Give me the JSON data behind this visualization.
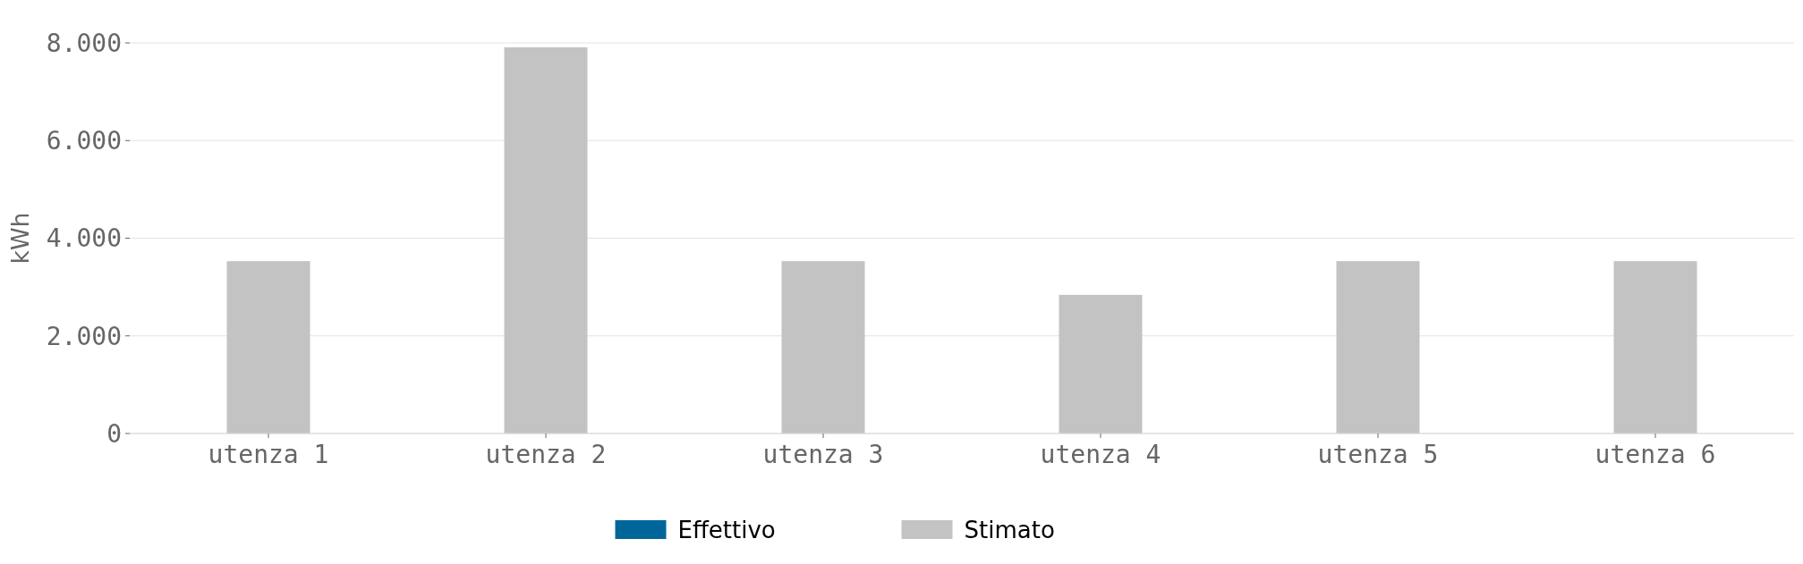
{
  "chart_data": {
    "type": "bar",
    "ylabel": "kWh",
    "categories": [
      "utenza 1",
      "utenza 2",
      "utenza 3",
      "utenza 4",
      "utenza 5",
      "utenza 6"
    ],
    "series": [
      {
        "name": "Effettivo",
        "color": "#006699",
        "values": [
          null,
          null,
          null,
          null,
          null,
          null
        ]
      },
      {
        "name": "Stimato",
        "color": "#c3c3c3",
        "values": [
          3530,
          7910,
          3530,
          2840,
          3530,
          3530
        ]
      }
    ],
    "ylim": [
      0,
      8000
    ],
    "yticks": [
      {
        "value": 0,
        "label": "0"
      },
      {
        "value": 2000,
        "label": "2.000"
      },
      {
        "value": 4000,
        "label": "4.000"
      },
      {
        "value": 6000,
        "label": "6.000"
      },
      {
        "value": 8000,
        "label": "8.000"
      }
    ],
    "grid": "y",
    "legend": "bottom"
  }
}
